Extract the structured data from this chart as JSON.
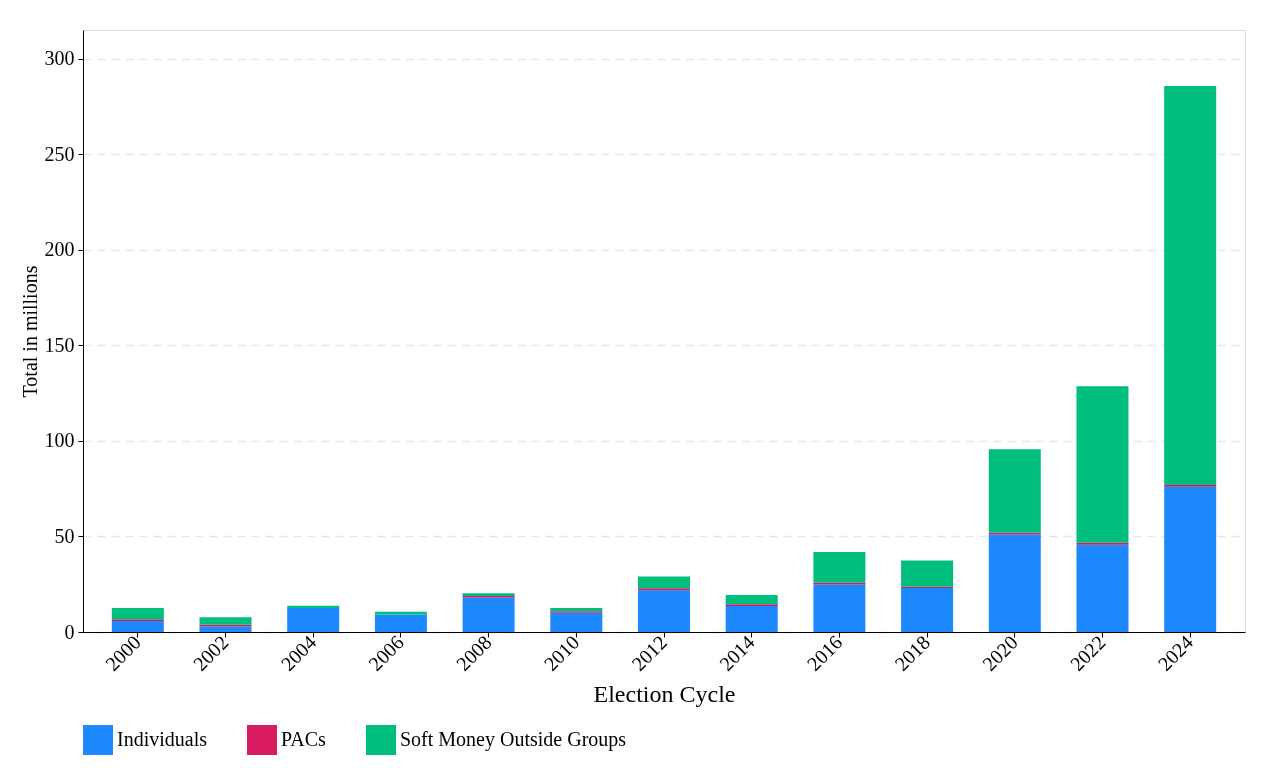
{
  "chart_data": {
    "type": "bar",
    "stacked": true,
    "xlabel": "Election Cycle",
    "ylabel": "Total in millions",
    "categories": [
      "2000",
      "2002",
      "2004",
      "2006",
      "2008",
      "2010",
      "2012",
      "2014",
      "2016",
      "2018",
      "2020",
      "2022",
      "2024"
    ],
    "series": [
      {
        "name": "Individuals",
        "color": "#1e88ff",
        "values": [
          5.7,
          2.9,
          12.5,
          9.2,
          18.1,
          10.1,
          21.8,
          13.6,
          24.8,
          23.0,
          51.0,
          45.6,
          76.0
        ]
      },
      {
        "name": "PACs",
        "color": "#d81b60",
        "values": [
          1.0,
          0.9,
          null,
          null,
          0.7,
          0.7,
          1.1,
          0.9,
          1.0,
          0.7,
          0.9,
          1.1,
          0.9
        ]
      },
      {
        "name": "Soft Money Outside Groups",
        "color": "#00bf7d",
        "values": [
          5.9,
          3.9,
          1.3,
          1.4,
          1.5,
          1.7,
          6.1,
          4.8,
          16.0,
          13.7,
          43.7,
          81.9,
          208.8
        ]
      }
    ],
    "ylim": [
      0,
      315
    ],
    "yticks": [
      0,
      50,
      100,
      150,
      200,
      250,
      300
    ],
    "grid": "y",
    "legend": "bottom"
  }
}
